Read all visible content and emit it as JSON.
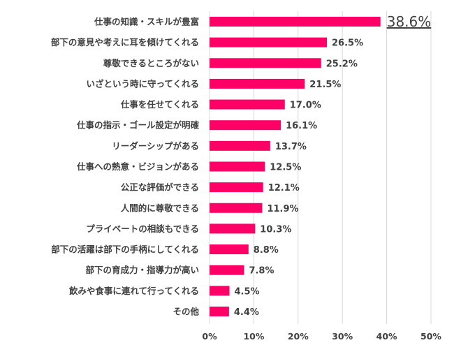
{
  "chart_data": {
    "type": "bar",
    "orientation": "horizontal",
    "categories": [
      "仕事の知識・スキルが豊富",
      "部下の意見や考えに耳を傾けてくれる",
      "尊敬できるところがない",
      "いざという時に守ってくれる",
      "仕事を任せてくれる",
      "仕事の指示・ゴール設定が明確",
      "リーダーシップがある",
      "仕事への熱意・ビジョンがある",
      "公正な評価ができる",
      "人間的に尊敬できる",
      "プライベートの相談もできる",
      "部下の活躍は部下の手柄にしてくれる",
      "部下の育成力・指導力が高い",
      "飲みや食事に連れて行ってくれる",
      "その他"
    ],
    "values": [
      38.6,
      26.5,
      25.2,
      21.5,
      17.0,
      16.1,
      13.7,
      12.5,
      12.1,
      11.9,
      10.3,
      8.8,
      7.8,
      4.5,
      4.4
    ],
    "value_labels": [
      "38.6%",
      "26.5%",
      "25.2%",
      "21.5%",
      "17.0%",
      "16.1%",
      "13.7%",
      "12.5%",
      "12.1%",
      "11.9%",
      "10.3%",
      "8.8%",
      "7.8%",
      "4.5%",
      "4.4%"
    ],
    "highlight_index": 0,
    "xlim": [
      0,
      50
    ],
    "xticks": [
      0,
      10,
      20,
      30,
      40,
      50
    ],
    "xtick_labels": [
      "0%",
      "10%",
      "20%",
      "30%",
      "40%",
      "50%"
    ],
    "grid": "vertical",
    "legend": "none",
    "colors": {
      "bar": "#ff0066",
      "highlight_text": "#ff0066",
      "text": "#404040",
      "grid": "#d9d9d9"
    }
  }
}
